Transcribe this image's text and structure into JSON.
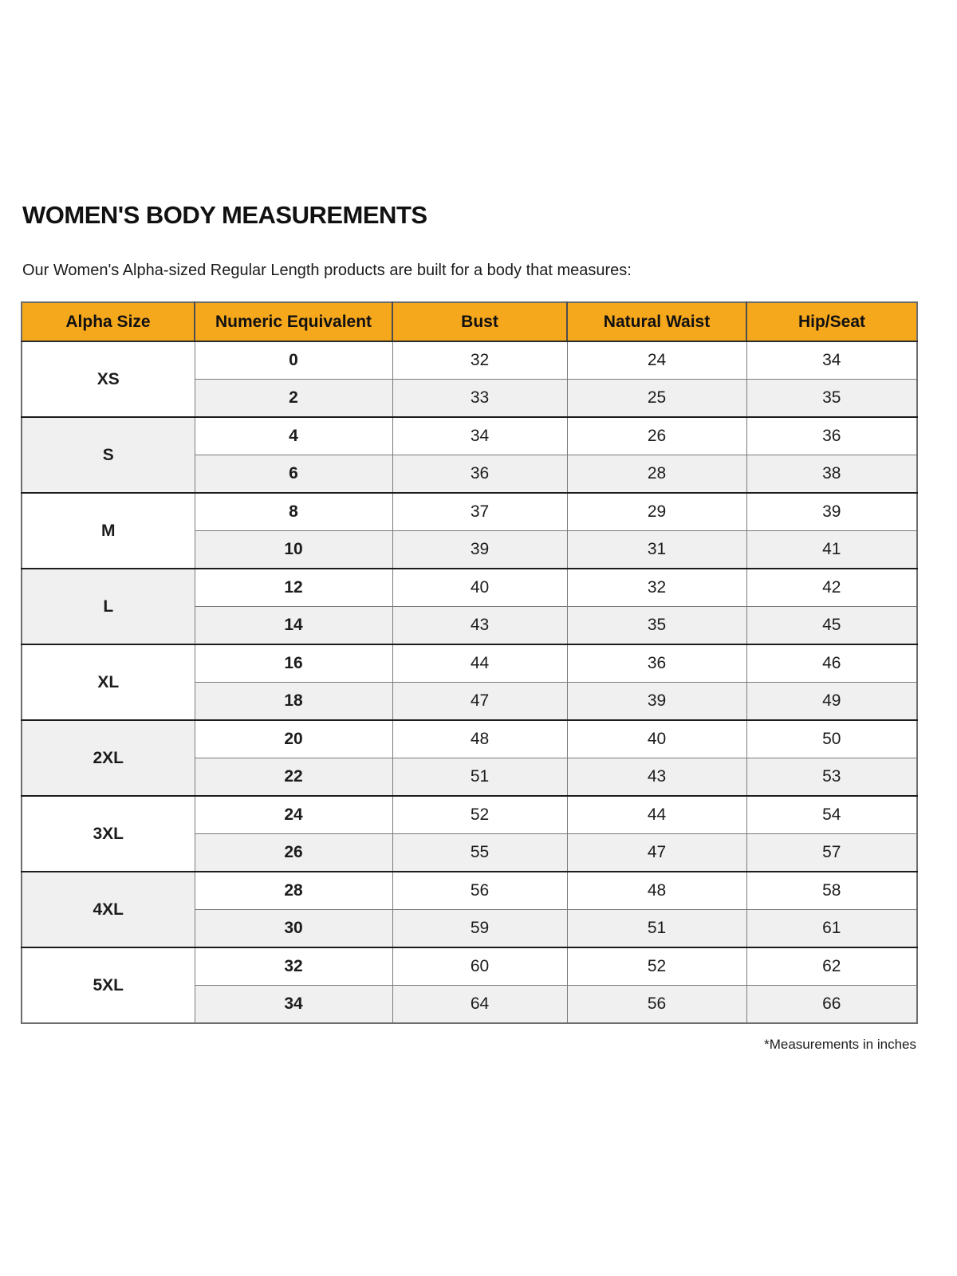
{
  "page": {
    "title": "WOMEN'S BODY MEASUREMENTS",
    "subtitle": "Our Women's Alpha-sized Regular Length products are built for a body that measures:",
    "footnote": "*Measurements in inches"
  },
  "colors": {
    "header_bg": "#F6A81C",
    "alt_row_bg": "#F0F0F0",
    "group_separator": "#1C1C1C",
    "cell_border": "#7B7B7B",
    "outer_border": "#6D6D6D"
  },
  "table": {
    "columns": [
      "Alpha Size",
      "Numeric Equivalent",
      "Bust",
      "Natural Waist",
      "Hip/Seat"
    ],
    "groups": [
      {
        "alpha": "XS",
        "rows": [
          [
            "0",
            "32",
            "24",
            "34"
          ],
          [
            "2",
            "33",
            "25",
            "35"
          ]
        ]
      },
      {
        "alpha": "S",
        "rows": [
          [
            "4",
            "34",
            "26",
            "36"
          ],
          [
            "6",
            "36",
            "28",
            "38"
          ]
        ]
      },
      {
        "alpha": "M",
        "rows": [
          [
            "8",
            "37",
            "29",
            "39"
          ],
          [
            "10",
            "39",
            "31",
            "41"
          ]
        ]
      },
      {
        "alpha": "L",
        "rows": [
          [
            "12",
            "40",
            "32",
            "42"
          ],
          [
            "14",
            "43",
            "35",
            "45"
          ]
        ]
      },
      {
        "alpha": "XL",
        "rows": [
          [
            "16",
            "44",
            "36",
            "46"
          ],
          [
            "18",
            "47",
            "39",
            "49"
          ]
        ]
      },
      {
        "alpha": "2XL",
        "rows": [
          [
            "20",
            "48",
            "40",
            "50"
          ],
          [
            "22",
            "51",
            "43",
            "53"
          ]
        ]
      },
      {
        "alpha": "3XL",
        "rows": [
          [
            "24",
            "52",
            "44",
            "54"
          ],
          [
            "26",
            "55",
            "47",
            "57"
          ]
        ]
      },
      {
        "alpha": "4XL",
        "rows": [
          [
            "28",
            "56",
            "48",
            "58"
          ],
          [
            "30",
            "59",
            "51",
            "61"
          ]
        ]
      },
      {
        "alpha": "5XL",
        "rows": [
          [
            "32",
            "60",
            "52",
            "62"
          ],
          [
            "34",
            "64",
            "56",
            "66"
          ]
        ]
      }
    ]
  },
  "chart_data": {
    "type": "table",
    "title": "WOMEN'S BODY MEASUREMENTS",
    "columns": [
      "Alpha Size",
      "Numeric Equivalent",
      "Bust",
      "Natural Waist",
      "Hip/Seat"
    ],
    "rows": [
      [
        "XS",
        "0",
        32,
        24,
        34
      ],
      [
        "XS",
        "2",
        33,
        25,
        35
      ],
      [
        "S",
        "4",
        34,
        26,
        36
      ],
      [
        "S",
        "6",
        36,
        28,
        38
      ],
      [
        "M",
        "8",
        37,
        29,
        39
      ],
      [
        "M",
        "10",
        39,
        31,
        41
      ],
      [
        "L",
        "12",
        40,
        32,
        42
      ],
      [
        "L",
        "14",
        43,
        35,
        45
      ],
      [
        "XL",
        "16",
        44,
        36,
        46
      ],
      [
        "XL",
        "18",
        47,
        39,
        49
      ],
      [
        "2XL",
        "20",
        48,
        40,
        50
      ],
      [
        "2XL",
        "22",
        51,
        43,
        53
      ],
      [
        "3XL",
        "24",
        52,
        44,
        54
      ],
      [
        "3XL",
        "26",
        55,
        47,
        57
      ],
      [
        "4XL",
        "28",
        56,
        48,
        58
      ],
      [
        "4XL",
        "30",
        59,
        51,
        61
      ],
      [
        "5XL",
        "32",
        60,
        52,
        62
      ],
      [
        "5XL",
        "34",
        64,
        56,
        66
      ]
    ],
    "units": "inches"
  }
}
